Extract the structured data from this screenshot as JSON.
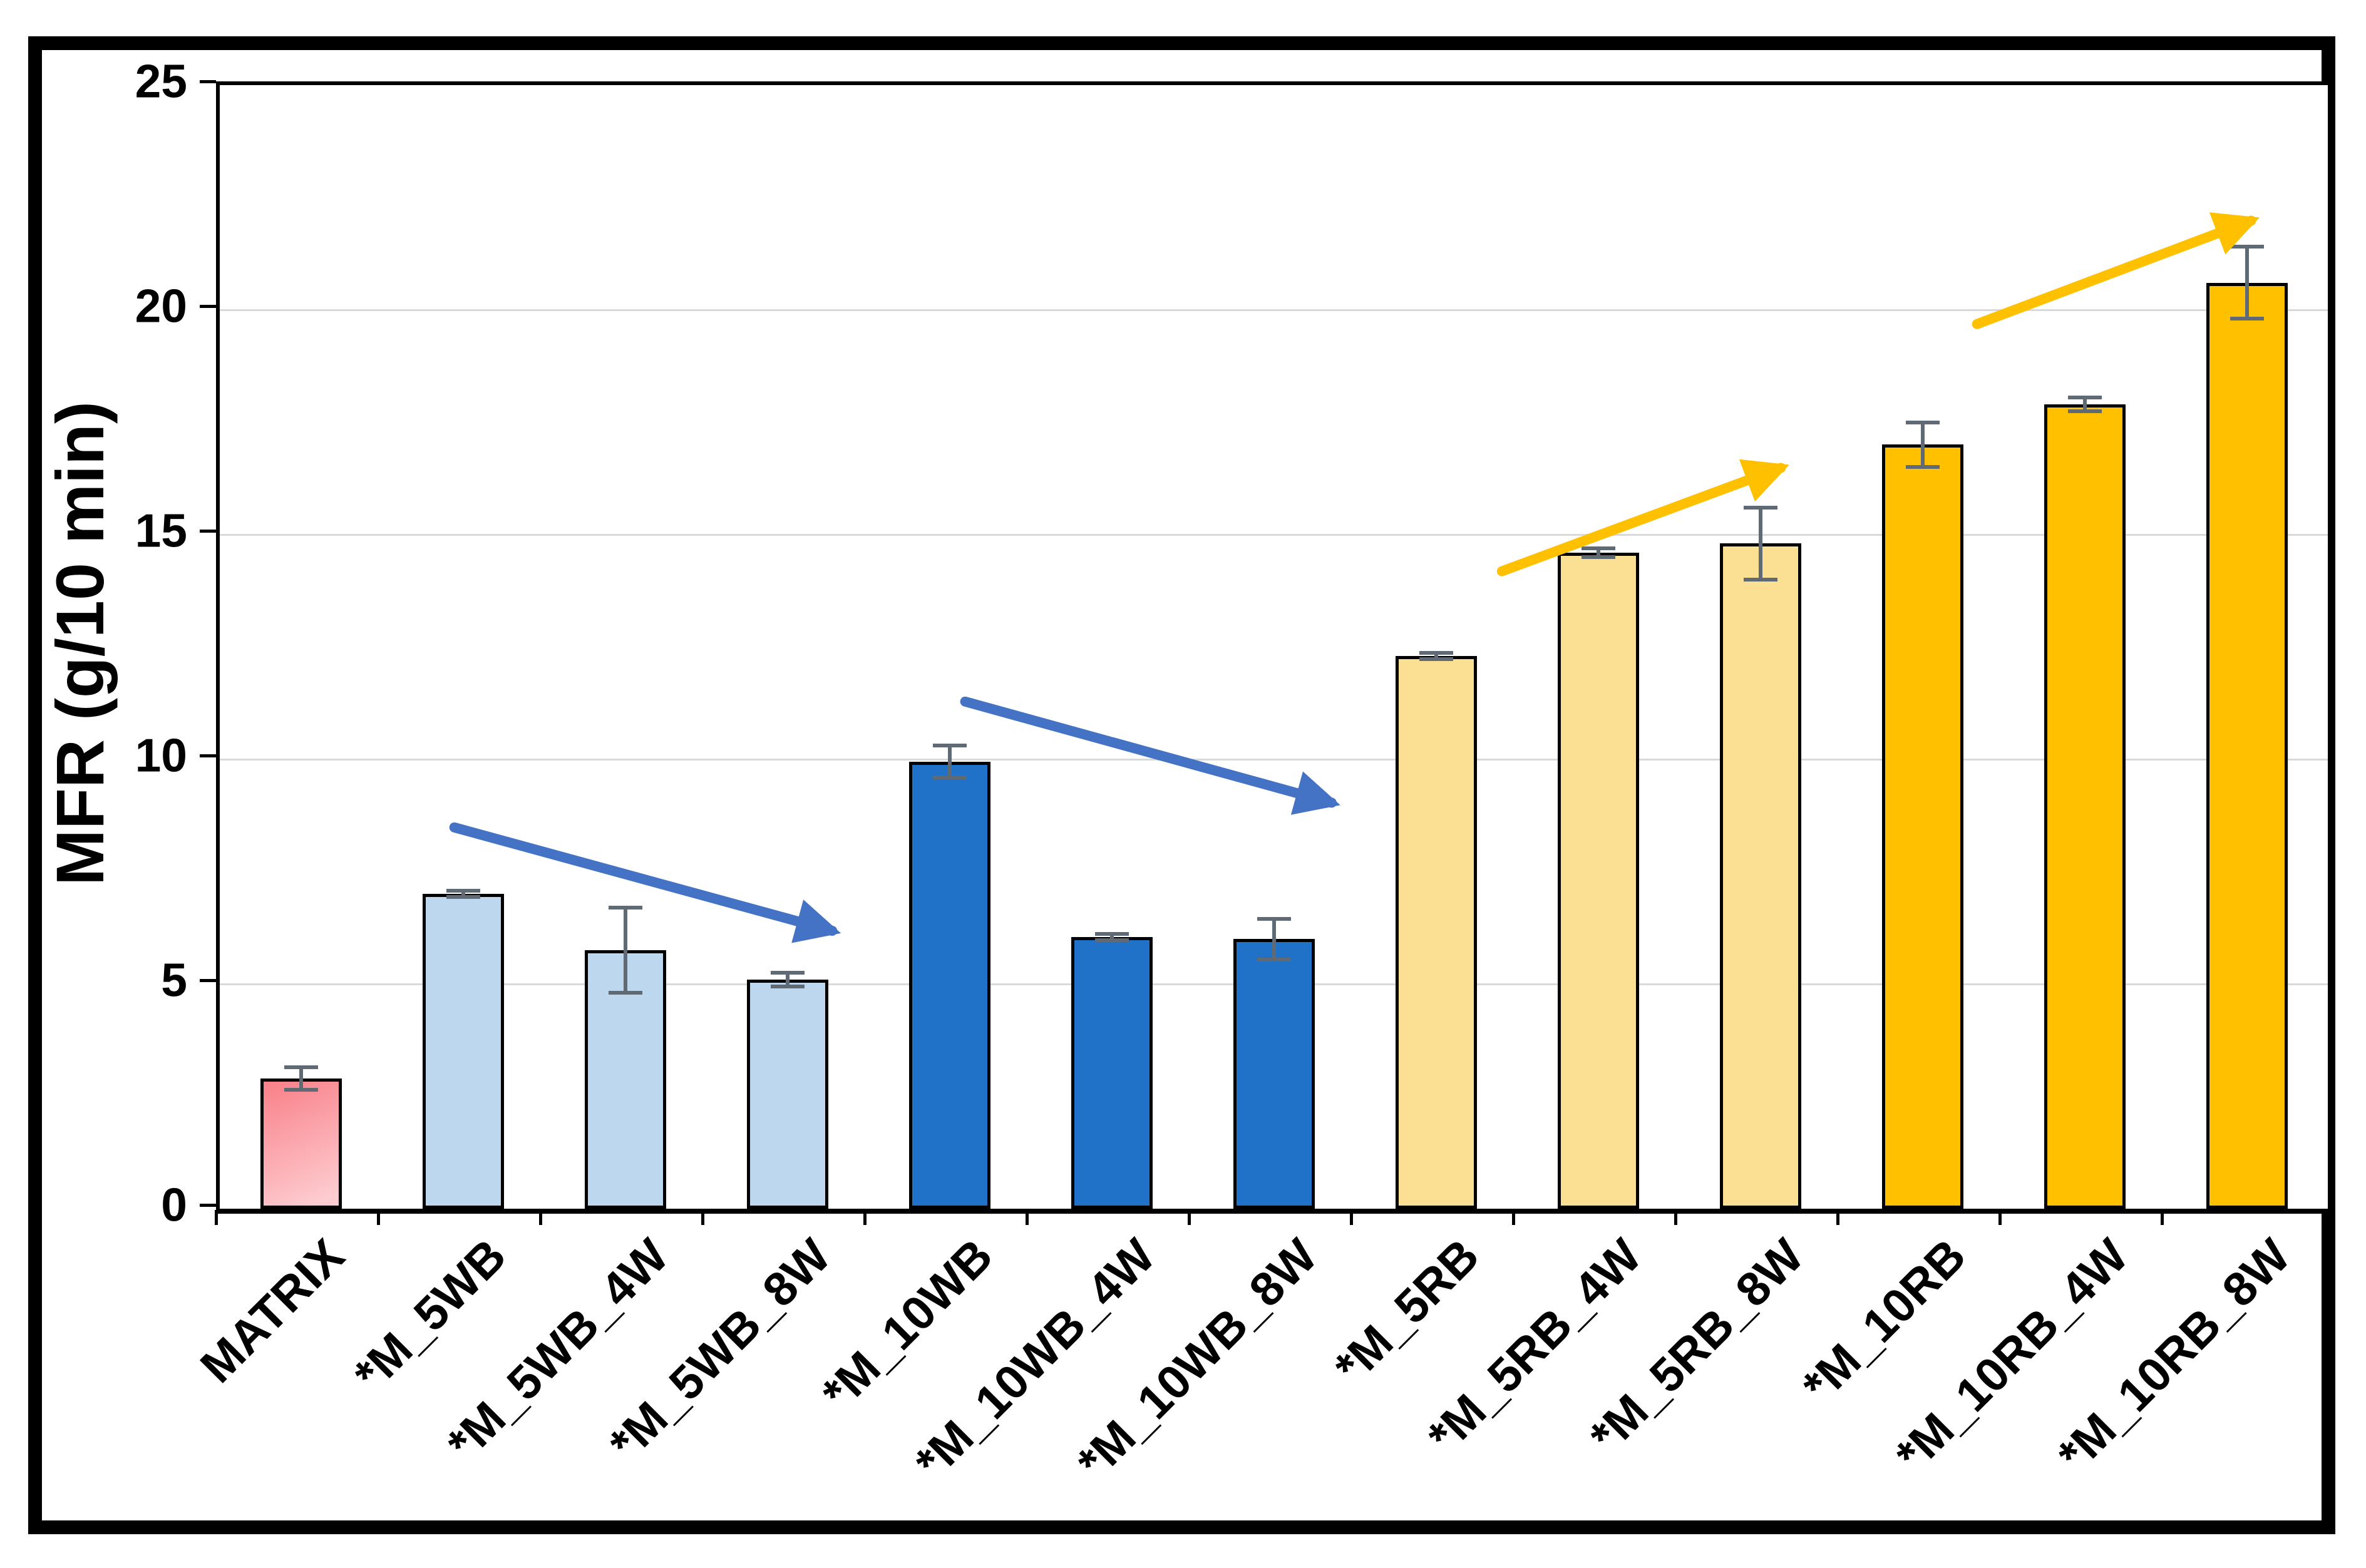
{
  "figure": {
    "background": "#ffffff",
    "outer_border_color": "#000000",
    "plot_border_color": "#000000"
  },
  "chart_data": {
    "type": "bar",
    "title": "",
    "xlabel": "",
    "ylabel": "MFR (g/10 min)",
    "ylim": [
      0,
      25
    ],
    "yticks": [
      0,
      5,
      10,
      15,
      20,
      25
    ],
    "grid": true,
    "legend": "none",
    "categories": [
      "MATRIX",
      "*M_5WB",
      "*M_5WB_4W",
      "*M_5WB_8W",
      "*M_10WB",
      "*M_10WB_4W",
      "*M_10WB_8W",
      "*M_5RB",
      "*M_5RB_4W",
      "*M_5RB_8W",
      "*M_10RB",
      "*M_10RB_4W",
      "*M_10RB_8W"
    ],
    "values": [
      2.9,
      7.0,
      5.75,
      5.1,
      9.95,
      6.05,
      6.0,
      12.3,
      14.6,
      14.8,
      17.0,
      17.9,
      20.6
    ],
    "errors": [
      0.25,
      0.07,
      0.95,
      0.15,
      0.35,
      0.07,
      0.45,
      0.07,
      0.1,
      0.8,
      0.5,
      0.15,
      0.8
    ],
    "bar_groups": [
      "matrix",
      "wb5",
      "wb5",
      "wb5",
      "wb10",
      "wb10",
      "wb10",
      "rb5",
      "rb5",
      "rb5",
      "rb10",
      "rb10",
      "rb10"
    ],
    "group_colors": {
      "matrix": {
        "type": "gradient",
        "from": "#f97f88",
        "to": "#fdccd0"
      },
      "wb5": {
        "type": "solid",
        "fill": "#bdd7ee"
      },
      "wb10": {
        "type": "solid",
        "fill": "#1f72c8"
      },
      "rb5": {
        "type": "solid",
        "fill": "#fbe093"
      },
      "rb10": {
        "type": "solid",
        "fill": "#ffc000"
      }
    },
    "bar_border_color": "#000000",
    "error_bar_color": "#5f6a74",
    "gridline_color": "#d9d9d9",
    "axis_color": "#000000",
    "annotations": {
      "arrows": [
        {
          "name": "wb5-trend-down",
          "x1": 1.47,
          "y1": 8.4,
          "x2": 3.8,
          "y2": 6.1,
          "color": "#4472c4"
        },
        {
          "name": "wb10-trend-down",
          "x1": 4.62,
          "y1": 11.2,
          "x2": 6.88,
          "y2": 8.95,
          "color": "#4472c4"
        },
        {
          "name": "rb5-trend-up",
          "x1": 7.93,
          "y1": 14.1,
          "x2": 9.65,
          "y2": 16.4,
          "color": "#ffc000"
        },
        {
          "name": "rb10-trend-up",
          "x1": 10.86,
          "y1": 19.6,
          "x2": 12.55,
          "y2": 21.9,
          "color": "#ffc000"
        }
      ]
    }
  }
}
